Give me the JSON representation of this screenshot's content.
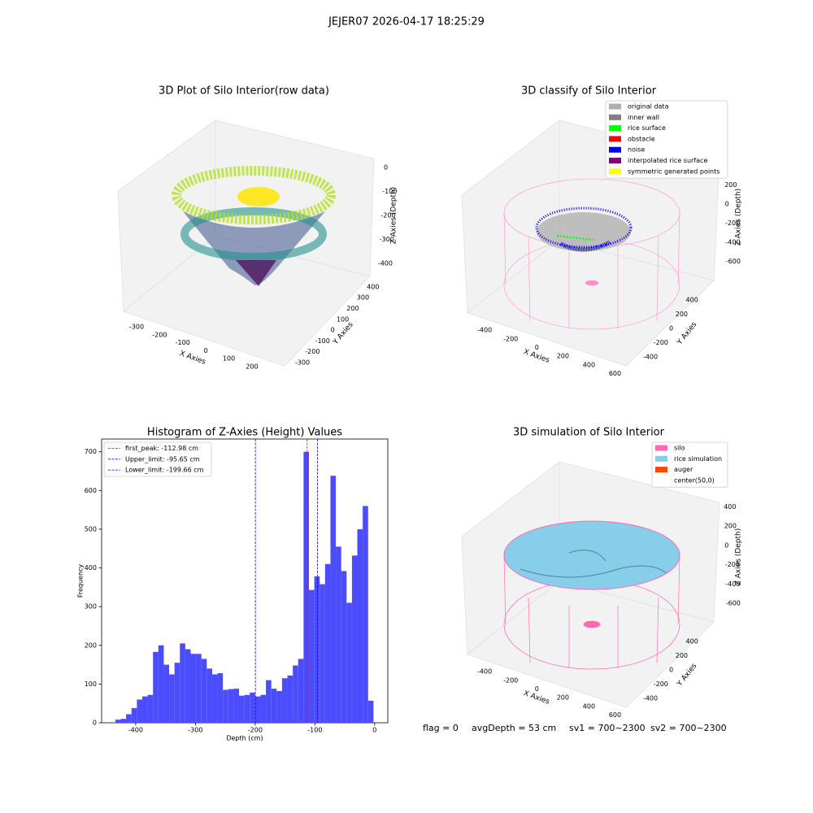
{
  "title": "JEJER07 2026-04-17 18:25:29",
  "annotations": [
    "flag = 0",
    "avgDepth = 53 cm",
    "sv1 = 700~2300",
    "sv2 = 700~2300"
  ],
  "chart_data": [
    {
      "type": "scatter3d",
      "title": "3D Plot of Silo Interior(row data)",
      "xlabel": "X Axies",
      "ylabel": "Y Axies",
      "zlabel": "Z Axies (Depth)",
      "xlim": [
        -340,
        260
      ],
      "xticks": [
        -300,
        -200,
        -100,
        0,
        100,
        200
      ],
      "ylim": [
        -340,
        420
      ],
      "yticks": [
        -300,
        -200,
        -100,
        0,
        100,
        200,
        300,
        400
      ],
      "zlim": [
        -440,
        20
      ],
      "zticks": [
        -400,
        -300,
        -200,
        -100,
        0
      ]
    },
    {
      "type": "scatter3d",
      "title": "3D classify of Silo Interior",
      "xlabel": "X Axies",
      "ylabel": "Y Axies",
      "zlabel": "Z Axies (Depth)",
      "xlim": [
        -480,
        640
      ],
      "xticks": [
        -400,
        -200,
        0,
        200,
        400,
        600
      ],
      "ylim": [
        -480,
        480
      ],
      "yticks": [
        -400,
        -200,
        0,
        200,
        400
      ],
      "zlim": [
        -700,
        300
      ],
      "zticks": [
        -600,
        -400,
        -200,
        0,
        200
      ],
      "legend": [
        {
          "name": "original data",
          "color": "#b0b0b0"
        },
        {
          "name": "inner wall",
          "color": "#808080"
        },
        {
          "name": "rice surface",
          "color": "#00ff00"
        },
        {
          "name": "obstacle",
          "color": "#ff0000"
        },
        {
          "name": "noise",
          "color": "#0000ff"
        },
        {
          "name": "interpolated rice surface",
          "color": "#800080"
        },
        {
          "name": "symmetric generated points",
          "color": "#ffff00"
        }
      ]
    },
    {
      "type": "histogram",
      "title": "Histogram of Z-Axies (Height) Values",
      "xlabel": "Depth (cm)",
      "ylabel": "Frequency",
      "color": "#4c4cff",
      "bins": [
        -434,
        -425,
        -416,
        -407,
        -398,
        -389,
        -380,
        -371,
        -362,
        -353,
        -344,
        -335,
        -326,
        -317,
        -308,
        -299,
        -290,
        -281,
        -272,
        -263,
        -254,
        -245,
        -236,
        -227,
        -218,
        -209,
        -200,
        -191,
        -182,
        -173,
        -164,
        -155,
        -146,
        -137,
        -128,
        -119,
        -110,
        -101,
        -92,
        -83,
        -74,
        -65,
        -56,
        -47,
        -38,
        -29,
        -20,
        -11,
        -2
      ],
      "values": [
        8,
        10,
        22,
        38,
        60,
        68,
        72,
        183,
        200,
        150,
        125,
        155,
        205,
        190,
        178,
        178,
        165,
        140,
        125,
        128,
        85,
        87,
        88,
        70,
        72,
        78,
        68,
        72,
        110,
        88,
        82,
        115,
        122,
        148,
        165,
        700,
        343,
        378,
        358,
        410,
        638,
        455,
        392,
        310,
        432,
        500,
        560,
        57
      ],
      "xlim": [
        -457,
        22
      ],
      "xticks": [
        -400,
        -300,
        -200,
        -100,
        0
      ],
      "ylim": [
        0,
        733
      ],
      "yticks": [
        0,
        100,
        200,
        300,
        400,
        500,
        600,
        700
      ],
      "vlines": [
        {
          "name": "first_peak: -112.98 cm",
          "value": -112.98,
          "color": "#ff0000"
        },
        {
          "name": "Upper_limit: -95.65 cm",
          "value": -95.65,
          "color": "#0000ff"
        },
        {
          "name": "Lower_limit: -199.66 cm",
          "value": -199.66,
          "color": "#0000ff"
        }
      ]
    },
    {
      "type": "surface3d",
      "title": "3D simulation of Silo Interior",
      "xlabel": "X Axies",
      "ylabel": "Y Axies",
      "zlabel": "Z Axies (Depth)",
      "xlim": [
        -480,
        640
      ],
      "xticks": [
        -400,
        -200,
        0,
        200,
        400,
        600
      ],
      "ylim": [
        -480,
        480
      ],
      "yticks": [
        -400,
        -200,
        0,
        200,
        400
      ],
      "zlim": [
        -700,
        480
      ],
      "zticks": [
        -600,
        -400,
        -200,
        0,
        200,
        400
      ],
      "legend": [
        {
          "name": "silo",
          "color": "#ff69b4"
        },
        {
          "name": "rice simulation",
          "color": "#87ceeb"
        },
        {
          "name": "auger",
          "color": "#ff4500"
        },
        {
          "name": "center(50,0)",
          "color": "#ffffff"
        }
      ]
    }
  ]
}
